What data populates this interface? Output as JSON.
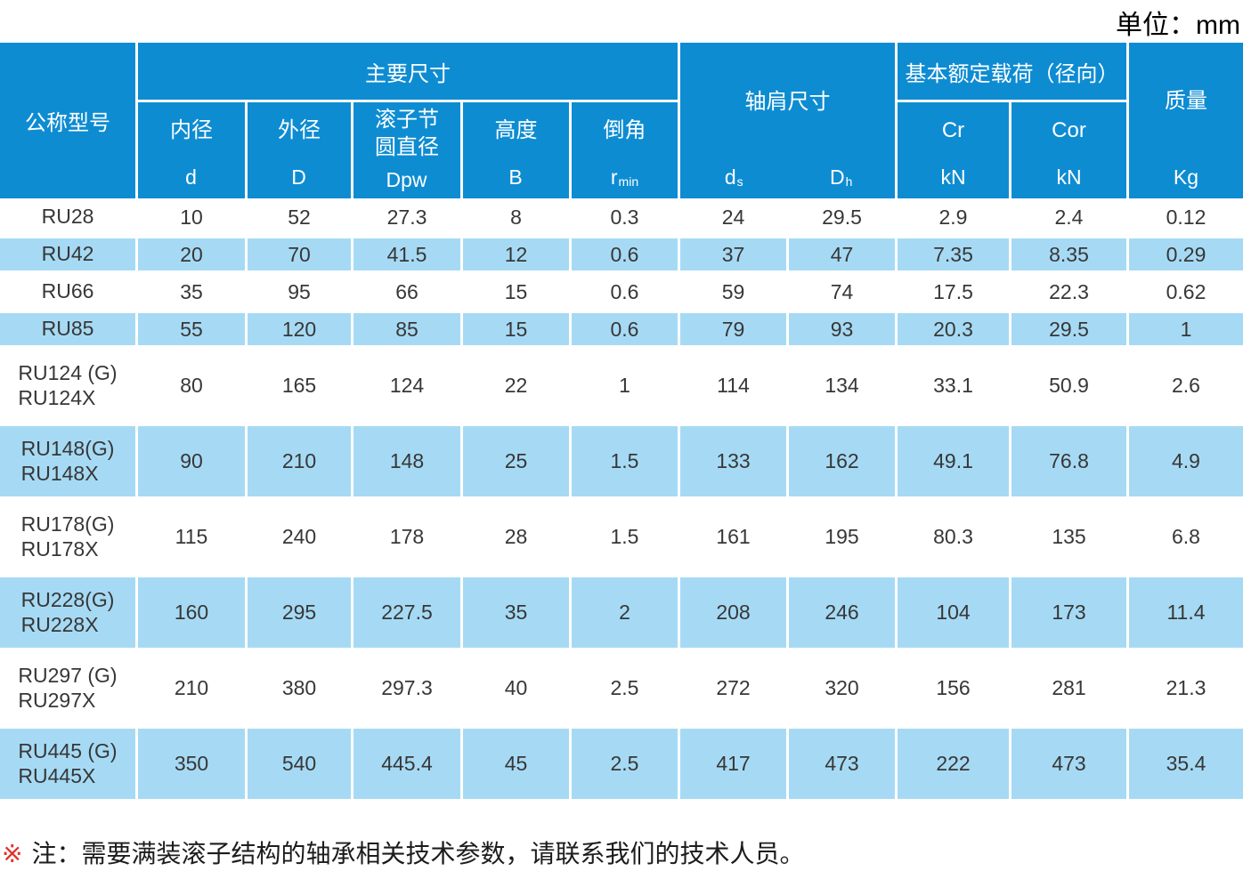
{
  "unit_label": "单位：mm",
  "colors": {
    "header_blue": "#0e8cd2",
    "row_blue": "#a6daf4",
    "text_dark": "#373737",
    "note_red": "#e0332a"
  },
  "header": {
    "model_label": "公称型号",
    "main_dims_label": "主要尺寸",
    "dims": [
      {
        "name": "内径",
        "sym": "d",
        "sub": ""
      },
      {
        "name": "外径",
        "sym": "D",
        "sub": ""
      },
      {
        "name": "滚子节圆直径",
        "sym": "Dpw",
        "sub": ""
      },
      {
        "name": "高度",
        "sym": "B",
        "sub": ""
      },
      {
        "name": "倒角",
        "sym": "r",
        "sub": "min"
      }
    ],
    "shoulder": {
      "label": "轴肩尺寸",
      "sym1": "d",
      "sub1": "s",
      "sym2": "D",
      "sub2": "h"
    },
    "load": {
      "label": "基本额定载荷（径向）",
      "cols": [
        {
          "sym": "Cr",
          "unit": "kN"
        },
        {
          "sym": "Cor",
          "unit": "kN"
        }
      ]
    },
    "mass": {
      "label": "质量",
      "unit": "Kg"
    }
  },
  "rows": [
    {
      "model_lines": [
        "RU28"
      ],
      "shaded": false,
      "values": [
        "10",
        "52",
        "27.3",
        "8",
        "0.3",
        "24",
        "29.5",
        "2.9",
        "2.4",
        "0.12"
      ]
    },
    {
      "model_lines": [
        "RU42"
      ],
      "shaded": true,
      "values": [
        "20",
        "70",
        "41.5",
        "12",
        "0.6",
        "37",
        "47",
        "7.35",
        "8.35",
        "0.29"
      ]
    },
    {
      "model_lines": [
        "RU66"
      ],
      "shaded": false,
      "values": [
        "35",
        "95",
        "66",
        "15",
        "0.6",
        "59",
        "74",
        "17.5",
        "22.3",
        "0.62"
      ]
    },
    {
      "model_lines": [
        "RU85"
      ],
      "shaded": true,
      "values": [
        "55",
        "120",
        "85",
        "15",
        "0.6",
        "79",
        "93",
        "20.3",
        "29.5",
        "1"
      ]
    },
    {
      "model_lines": [
        "RU124 (G)",
        "RU124X"
      ],
      "shaded": false,
      "values": [
        "80",
        "165",
        "124",
        "22",
        "1",
        "114",
        "134",
        "33.1",
        "50.9",
        "2.6"
      ]
    },
    {
      "model_lines": [
        "RU148(G)",
        "RU148X"
      ],
      "shaded": true,
      "values": [
        "90",
        "210",
        "148",
        "25",
        "1.5",
        "133",
        "162",
        "49.1",
        "76.8",
        "4.9"
      ]
    },
    {
      "model_lines": [
        "RU178(G)",
        "RU178X"
      ],
      "shaded": false,
      "values": [
        "115",
        "240",
        "178",
        "28",
        "1.5",
        "161",
        "195",
        "80.3",
        "135",
        "6.8"
      ]
    },
    {
      "model_lines": [
        "RU228(G)",
        "RU228X"
      ],
      "shaded": true,
      "values": [
        "160",
        "295",
        "227.5",
        "35",
        "2",
        "208",
        "246",
        "104",
        "173",
        "11.4"
      ]
    },
    {
      "model_lines": [
        "RU297 (G)",
        "RU297X"
      ],
      "shaded": false,
      "values": [
        "210",
        "380",
        "297.3",
        "40",
        "2.5",
        "272",
        "320",
        "156",
        "281",
        "21.3"
      ]
    },
    {
      "model_lines": [
        "RU445 (G)",
        "RU445X"
      ],
      "shaded": true,
      "values": [
        "350",
        "540",
        "445.4",
        "45",
        "2.5",
        "417",
        "473",
        "222",
        "473",
        "35.4"
      ]
    }
  ],
  "note": {
    "mark": "※",
    "text": "注：需要满装滚子结构的轴承相关技术参数，请联系我们的技术人员。"
  }
}
